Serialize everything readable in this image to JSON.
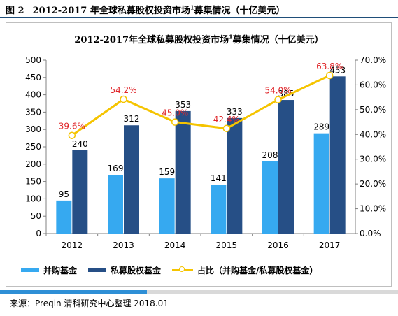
{
  "caption": {
    "figure_no": "图 2",
    "text": "2012-2017 年全球私募股权投资市场",
    "sup": "1",
    "text_tail": "募集情况（十亿美元）"
  },
  "source": "来源：Preqin  清科研究中心整理 2018.01",
  "colors": {
    "buyout": "#36a9f0",
    "pe": "#264f86",
    "ratio": "#f5c400",
    "ratio_label": "#e0262a",
    "bar_label": "#000000"
  },
  "chart_data": {
    "type": "bar",
    "title": "2012-2017年全球私募股权投资市场",
    "title_sup": "1",
    "title_tail": "募集情况（十亿美元）",
    "categories": [
      "2012",
      "2013",
      "2014",
      "2015",
      "2016",
      "2017"
    ],
    "series": [
      {
        "name": "并购基金",
        "type": "bar",
        "axis": "left",
        "values": [
          95,
          169,
          159,
          141,
          208,
          289
        ]
      },
      {
        "name": "私募股权基金",
        "type": "bar",
        "axis": "left",
        "values": [
          240,
          312,
          353,
          333,
          385,
          453
        ]
      },
      {
        "name": "占比（并购基金/私募股权基金）",
        "type": "line",
        "axis": "right",
        "values": [
          39.6,
          54.2,
          45.0,
          42.4,
          54.0,
          63.8
        ],
        "labels": [
          "39.6%",
          "54.2%",
          "45.0%",
          "42.4%",
          "54.0%",
          "63.8%"
        ]
      }
    ],
    "y_left": {
      "min": 0,
      "max": 500,
      "step": 50,
      "ticks": [
        "0",
        "50",
        "100",
        "150",
        "200",
        "250",
        "300",
        "350",
        "400",
        "450",
        "500"
      ]
    },
    "y_right": {
      "min": 0,
      "max": 70,
      "step": 10,
      "ticks": [
        "0.0%",
        "10.0%",
        "20.0%",
        "30.0%",
        "40.0%",
        "50.0%",
        "60.0%",
        "70.0%"
      ]
    },
    "grid": false,
    "legend_position": "bottom"
  }
}
